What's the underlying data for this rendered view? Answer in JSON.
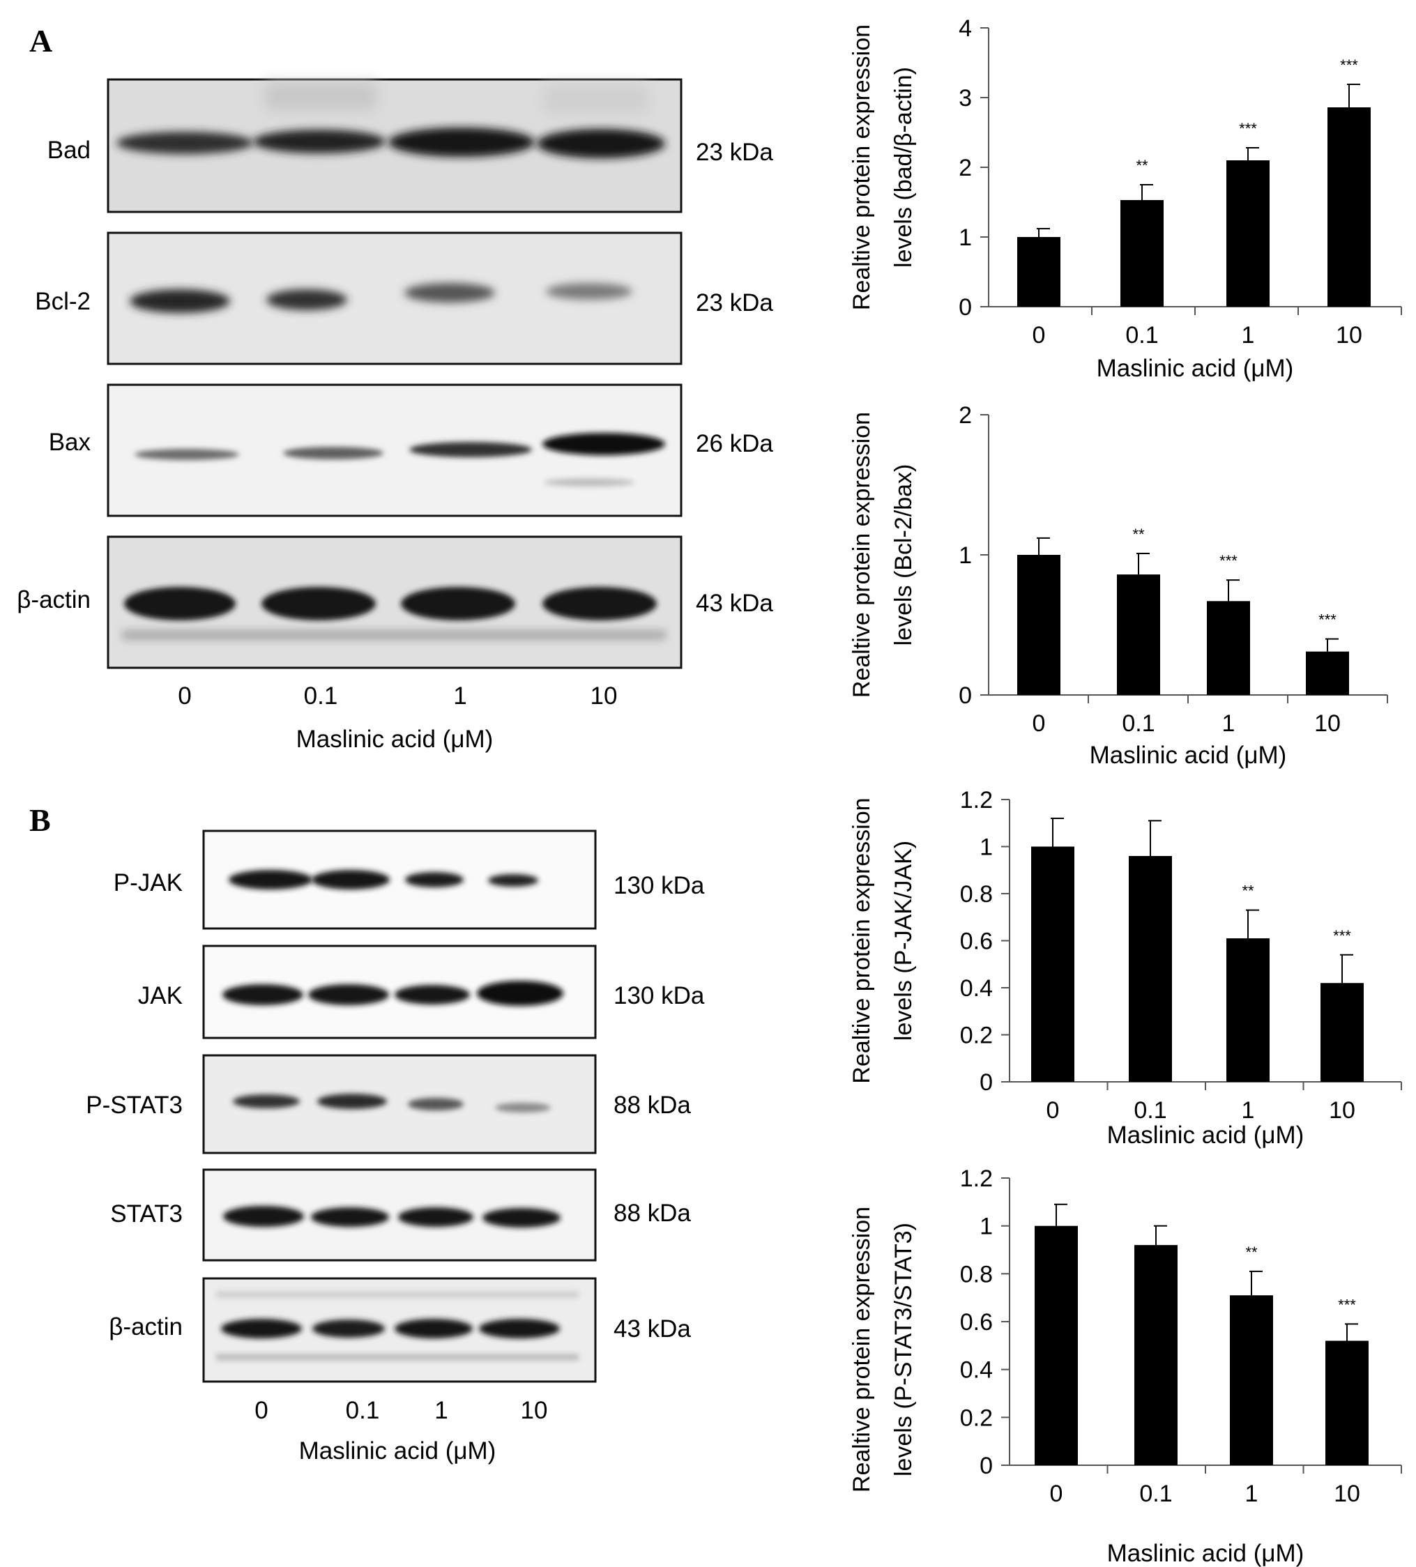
{
  "panels": {
    "A": {
      "letter": "A",
      "blots": [
        {
          "name": "Bad",
          "size": "23 kDa"
        },
        {
          "name": "Bcl-2",
          "size": "23 kDa"
        },
        {
          "name": "Bax",
          "size": "26 kDa"
        },
        {
          "name": "β-actin",
          "size": "43 kDa"
        }
      ],
      "lanes": [
        "0",
        "0.1",
        "1",
        "10"
      ],
      "xlabel": "Maslinic acid (μM)"
    },
    "B": {
      "letter": "B",
      "blots": [
        {
          "name": "P-JAK",
          "size": "130 kDa"
        },
        {
          "name": "JAK",
          "size": "130 kDa"
        },
        {
          "name": "P-STAT3",
          "size": "88 kDa"
        },
        {
          "name": "STAT3",
          "size": "88 kDa"
        },
        {
          "name": "β-actin",
          "size": "43 kDa"
        }
      ],
      "lanes": [
        "0",
        "0.1",
        "1",
        "10"
      ],
      "xlabel": "Maslinic acid (μM)"
    }
  },
  "chart_data": [
    {
      "type": "bar",
      "categories": [
        "0",
        "0.1",
        "1",
        "10"
      ],
      "values": [
        1.0,
        1.53,
        2.1,
        2.86
      ],
      "errors": [
        0.12,
        0.22,
        0.18,
        0.33
      ],
      "significance": [
        "",
        "**",
        "***",
        "***"
      ],
      "ylabel_lines": [
        "Realtive protein expression",
        "levels (bad/β-actin)"
      ],
      "xlabel": "Maslinic acid (μM)",
      "ylim": [
        0,
        4
      ],
      "yticks": [
        "0",
        "1",
        "2",
        "3",
        "4"
      ]
    },
    {
      "type": "bar",
      "categories": [
        "0",
        "0.1",
        "1",
        "10"
      ],
      "values": [
        1.0,
        0.86,
        0.67,
        0.31
      ],
      "errors": [
        0.12,
        0.15,
        0.15,
        0.09
      ],
      "significance": [
        "",
        "**",
        "***",
        "***"
      ],
      "ylabel_lines": [
        "Realtive protein expression",
        "levels (Bcl-2/bax)"
      ],
      "xlabel": "Maslinic acid (μM)",
      "ylim": [
        0,
        2
      ],
      "yticks": [
        "0",
        "1",
        "2"
      ]
    },
    {
      "type": "bar",
      "categories": [
        "0",
        "0.1",
        "1",
        "10"
      ],
      "values": [
        1.0,
        0.96,
        0.61,
        0.42
      ],
      "errors": [
        0.12,
        0.15,
        0.12,
        0.12
      ],
      "significance": [
        "",
        "",
        "**",
        "***"
      ],
      "ylabel_lines": [
        "Realtive protein expression",
        "levels (P-JAK/JAK)"
      ],
      "xlabel": "Maslinic acid (μM)",
      "ylim": [
        0,
        1.2
      ],
      "yticks": [
        "0",
        "0.2",
        "0.4",
        "0.6",
        "0.8",
        "1",
        "1.2"
      ]
    },
    {
      "type": "bar",
      "categories": [
        "0",
        "0.1",
        "1",
        "10"
      ],
      "values": [
        1.0,
        0.92,
        0.71,
        0.52
      ],
      "errors": [
        0.09,
        0.08,
        0.1,
        0.07
      ],
      "significance": [
        "",
        "",
        "**",
        "***"
      ],
      "ylabel_lines": [
        "Realtive protein expression",
        "levels (P-STAT3/STAT3)"
      ],
      "xlabel": "Maslinic acid (μM)",
      "ylim": [
        0,
        1.2
      ],
      "yticks": [
        "0",
        "0.2",
        "0.4",
        "0.6",
        "0.8",
        "1",
        "1.2"
      ]
    }
  ]
}
